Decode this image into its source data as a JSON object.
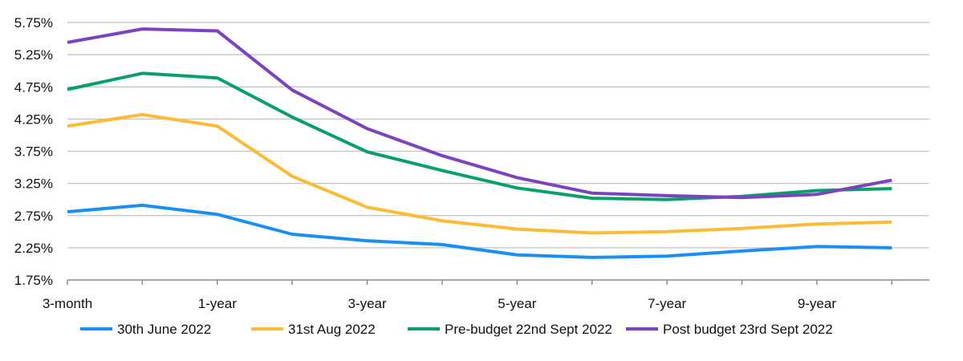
{
  "chart_data": {
    "type": "line",
    "title": "",
    "xlabel": "",
    "ylabel": "",
    "ylim": [
      1.75,
      6.0
    ],
    "y_ticks": [
      "1.75%",
      "2.25%",
      "2.75%",
      "3.25%",
      "3.75%",
      "4.25%",
      "4.75%",
      "5.25%",
      "5.75%"
    ],
    "x_tick_labels": [
      "3-month",
      "1-year",
      "3-year",
      "5-year",
      "7-year",
      "9-year"
    ],
    "x_tick_positions": [
      0,
      2,
      4,
      6,
      8,
      10
    ],
    "grid": "horizontal",
    "legend_position": "bottom",
    "series": [
      {
        "name": "30th June 2022",
        "color": "#1a8ff0",
        "values": [
          2.81,
          2.91,
          2.77,
          2.46,
          2.36,
          2.3,
          2.14,
          2.1,
          2.12,
          2.2,
          2.27,
          2.25
        ]
      },
      {
        "name": "31st Aug 2022",
        "color": "#fbbb37",
        "values": [
          4.14,
          4.32,
          4.14,
          3.36,
          2.88,
          2.67,
          2.54,
          2.48,
          2.5,
          2.55,
          2.62,
          2.65
        ]
      },
      {
        "name": "Pre-budget 22nd Sept 2022",
        "color": "#07a06b",
        "values": [
          4.71,
          4.96,
          4.89,
          4.28,
          3.74,
          3.45,
          3.18,
          3.02,
          3.0,
          3.05,
          3.14,
          3.17
        ]
      },
      {
        "name": "Post budget 23rd Sept 2022",
        "color": "#7b43bf",
        "values": [
          5.44,
          5.65,
          5.62,
          4.7,
          4.1,
          3.68,
          3.34,
          3.1,
          3.06,
          3.03,
          3.08,
          3.3
        ]
      }
    ]
  }
}
